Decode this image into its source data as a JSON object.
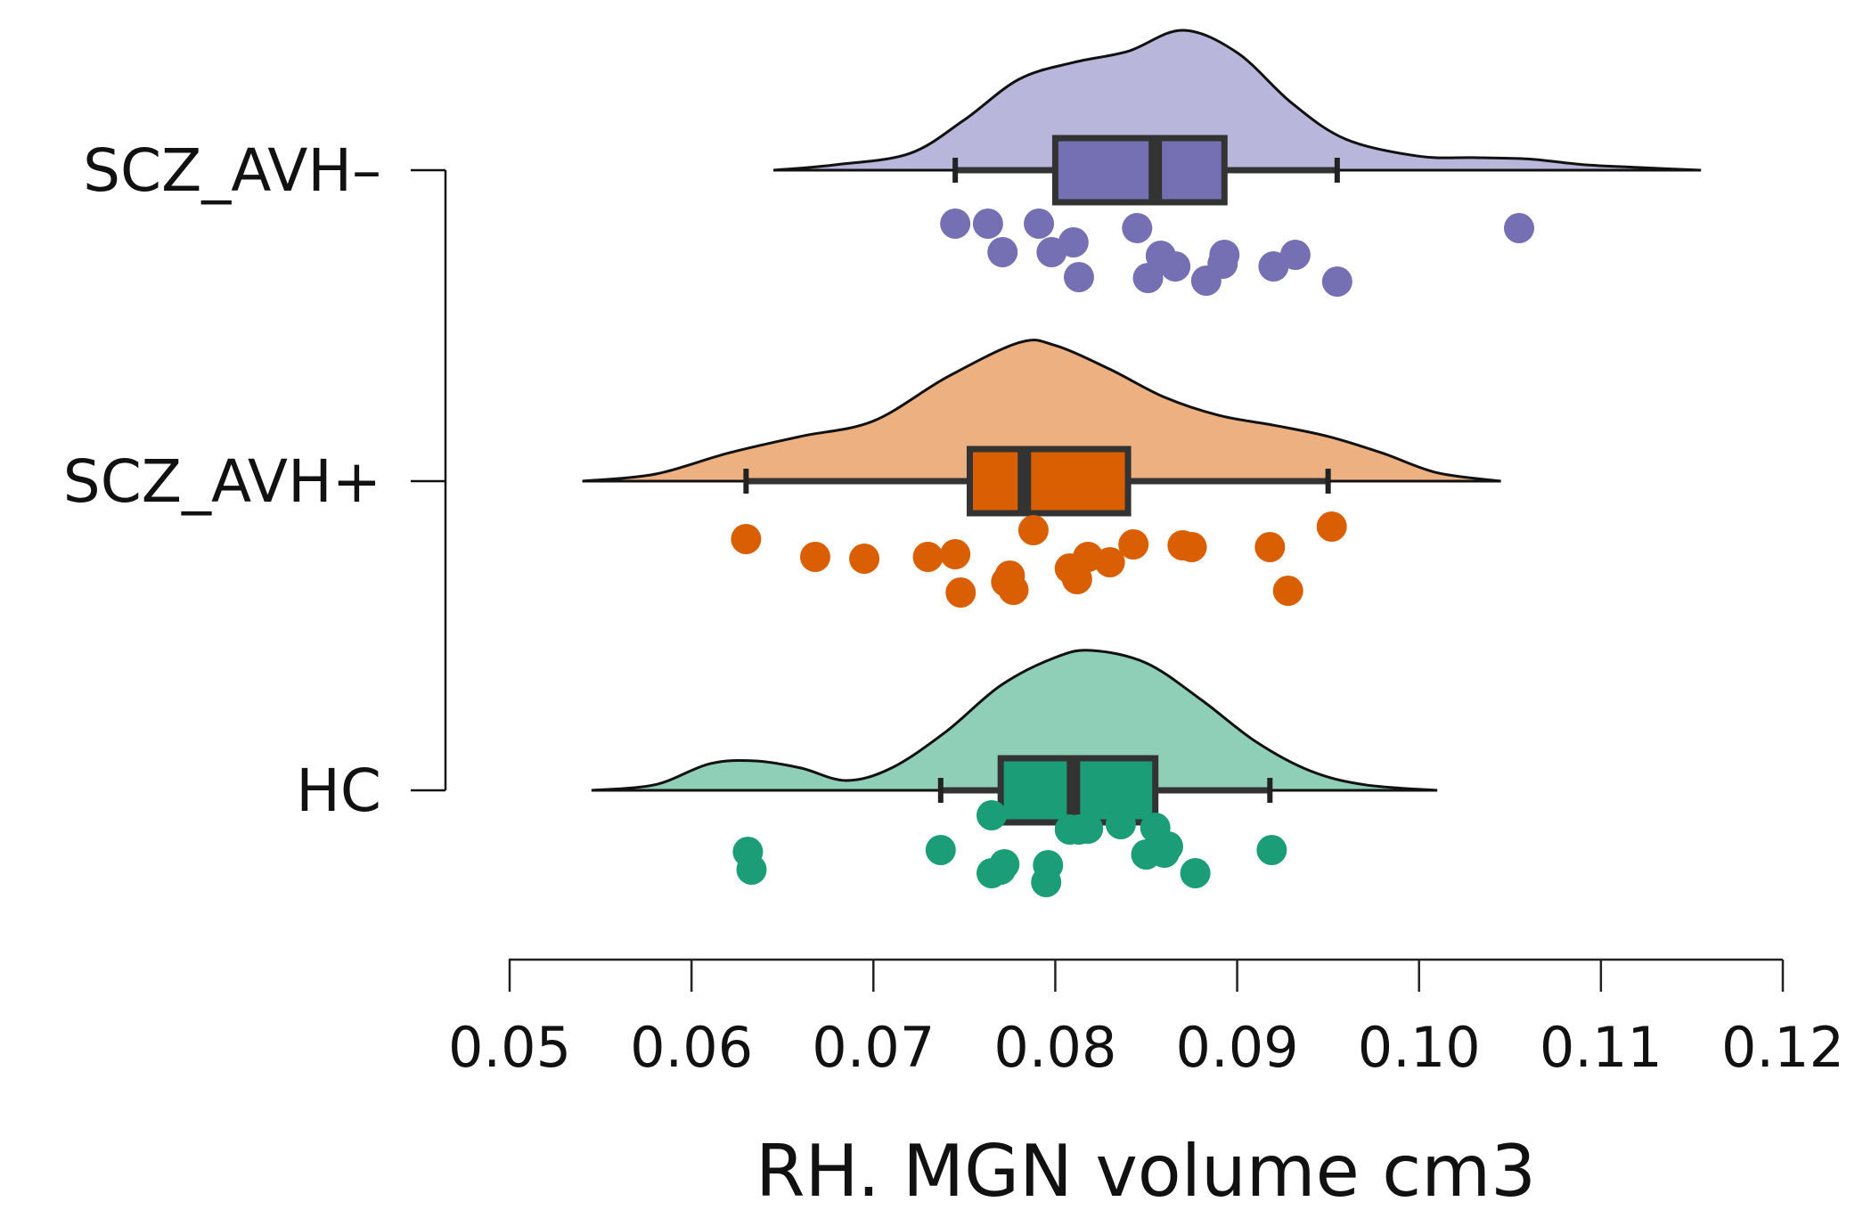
{
  "chart_data": {
    "type": "raincloud",
    "title": "",
    "xlabel": "RH. MGN volume cm3",
    "ylabel": "",
    "xlim": [
      0.05,
      0.12
    ],
    "xticks": [
      "0.05",
      "0.06",
      "0.07",
      "0.08",
      "0.09",
      "0.10",
      "0.11",
      "0.12"
    ],
    "grid": false,
    "groups": [
      {
        "name": "SCZ_AVH–",
        "fill_color": "#b9b6dc",
        "box_color": "#7570b3",
        "density_range": [
          0.0645,
          0.1155
        ],
        "density_peak_max": 1.0,
        "density": [
          [
            0.0645,
            0.0
          ],
          [
            0.068,
            0.04
          ],
          [
            0.072,
            0.12
          ],
          [
            0.075,
            0.36
          ],
          [
            0.078,
            0.65
          ],
          [
            0.081,
            0.77
          ],
          [
            0.084,
            0.85
          ],
          [
            0.087,
            1.0
          ],
          [
            0.09,
            0.84
          ],
          [
            0.093,
            0.48
          ],
          [
            0.096,
            0.22
          ],
          [
            0.1,
            0.1
          ],
          [
            0.103,
            0.09
          ],
          [
            0.106,
            0.08
          ],
          [
            0.109,
            0.04
          ],
          [
            0.112,
            0.02
          ],
          [
            0.1155,
            0.0
          ]
        ],
        "box": {
          "whisker_low": 0.0745,
          "q1": 0.08,
          "median": 0.0855,
          "q3": 0.0893,
          "whisker_high": 0.0955
        },
        "points": [
          0.0745,
          0.0763,
          0.0771,
          0.0791,
          0.0798,
          0.081,
          0.0813,
          0.0845,
          0.0851,
          0.0858,
          0.0866,
          0.0883,
          0.0892,
          0.0893,
          0.092,
          0.0932,
          0.0955,
          0.1055
        ]
      },
      {
        "name": "SCZ_AVH+",
        "fill_color": "#edb081",
        "box_color": "#d95f02",
        "density_range": [
          0.054,
          0.1045
        ],
        "density_peak_max": 1.0,
        "density": [
          [
            0.054,
            0.0
          ],
          [
            0.058,
            0.05
          ],
          [
            0.062,
            0.2
          ],
          [
            0.066,
            0.32
          ],
          [
            0.07,
            0.43
          ],
          [
            0.074,
            0.74
          ],
          [
            0.078,
            0.99
          ],
          [
            0.08,
            0.97
          ],
          [
            0.083,
            0.8
          ],
          [
            0.086,
            0.6
          ],
          [
            0.089,
            0.47
          ],
          [
            0.092,
            0.4
          ],
          [
            0.095,
            0.32
          ],
          [
            0.098,
            0.2
          ],
          [
            0.101,
            0.06
          ],
          [
            0.1045,
            0.0
          ]
        ],
        "box": {
          "whisker_low": 0.063,
          "q1": 0.0753,
          "median": 0.0783,
          "q3": 0.084,
          "whisker_high": 0.095
        },
        "points": [
          0.063,
          0.0668,
          0.0695,
          0.073,
          0.0745,
          0.0748,
          0.0773,
          0.0775,
          0.0777,
          0.0788,
          0.0808,
          0.0812,
          0.0818,
          0.083,
          0.0843,
          0.087,
          0.0875,
          0.0918,
          0.0928,
          0.0952
        ]
      },
      {
        "name": "HC",
        "fill_color": "#8fcfb8",
        "box_color": "#1b9e77",
        "density_range": [
          0.0545,
          0.101
        ],
        "density_peak_max": 1.0,
        "density": [
          [
            0.0545,
            0.0
          ],
          [
            0.058,
            0.04
          ],
          [
            0.061,
            0.19
          ],
          [
            0.0635,
            0.21
          ],
          [
            0.066,
            0.16
          ],
          [
            0.0685,
            0.07
          ],
          [
            0.071,
            0.16
          ],
          [
            0.074,
            0.42
          ],
          [
            0.077,
            0.75
          ],
          [
            0.08,
            0.95
          ],
          [
            0.082,
            1.0
          ],
          [
            0.085,
            0.91
          ],
          [
            0.088,
            0.65
          ],
          [
            0.091,
            0.35
          ],
          [
            0.094,
            0.14
          ],
          [
            0.097,
            0.04
          ],
          [
            0.101,
            0.0
          ]
        ],
        "box": {
          "whisker_low": 0.0737,
          "q1": 0.077,
          "median": 0.081,
          "q3": 0.0855,
          "whisker_high": 0.0918
        },
        "points": [
          0.0631,
          0.0633,
          0.0737,
          0.0765,
          0.0765,
          0.077,
          0.0772,
          0.0795,
          0.0796,
          0.0808,
          0.0813,
          0.0818,
          0.0836,
          0.085,
          0.0855,
          0.086,
          0.0862,
          0.0877,
          0.0919
        ]
      }
    ]
  }
}
